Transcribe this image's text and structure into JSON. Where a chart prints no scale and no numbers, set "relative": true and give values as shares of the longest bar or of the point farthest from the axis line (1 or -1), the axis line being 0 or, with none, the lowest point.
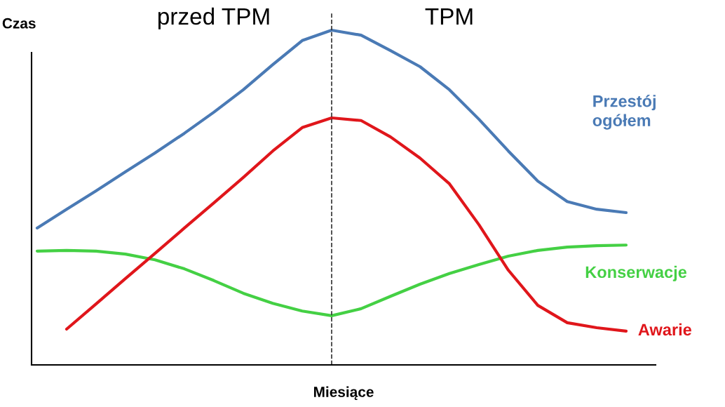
{
  "chart_data": {
    "type": "line",
    "relative": true,
    "xlabel": "Miesiące",
    "ylabel": "Czas",
    "categories": [
      null,
      null,
      null,
      null,
      null,
      null,
      null,
      null,
      null,
      null,
      null,
      null,
      null,
      null,
      null,
      null,
      null,
      null,
      null,
      null,
      null
    ],
    "series": [
      {
        "name": "Przestój\nogółem",
        "color": "#4a7ab5",
        "values": [
          0.409,
          0.465,
          0.52,
          0.577,
          0.633,
          0.692,
          0.755,
          0.822,
          0.897,
          0.969,
          1.0,
          0.985,
          0.939,
          0.891,
          0.822,
          0.734,
          0.639,
          0.549,
          0.488,
          0.465,
          0.455
        ]
      },
      {
        "name": "Konserwacje",
        "color": "#44d044",
        "values": [
          0.34,
          0.342,
          0.34,
          0.331,
          0.314,
          0.287,
          0.252,
          0.214,
          0.184,
          0.161,
          0.147,
          0.168,
          0.205,
          0.241,
          0.273,
          0.3,
          0.325,
          0.342,
          0.352,
          0.356,
          0.358
        ]
      },
      {
        "name": "Awarie",
        "color": "#e0161b",
        "values": [
          null,
          0.107,
          0.182,
          0.258,
          0.333,
          0.409,
          0.484,
          0.56,
          0.639,
          0.709,
          0.738,
          0.73,
          0.681,
          0.618,
          0.541,
          0.419,
          0.283,
          0.178,
          0.126,
          0.111,
          0.101
        ]
      }
    ],
    "annotations": [
      "przed TPM",
      "TPM"
    ],
    "legend": false,
    "marker": "none",
    "line_style": "solid",
    "tick_labels": false
  }
}
